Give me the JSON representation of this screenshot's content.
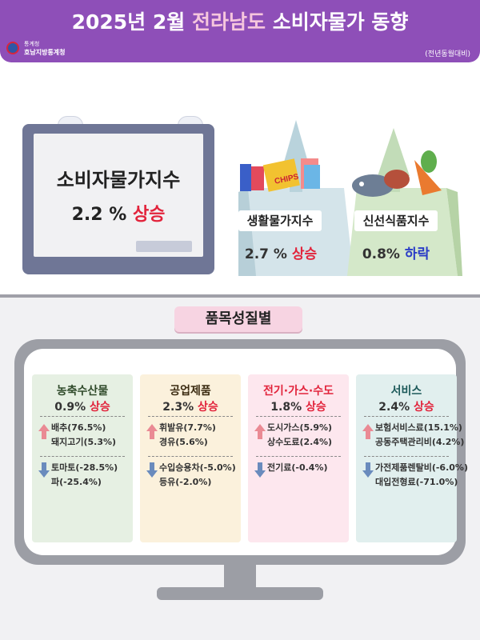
{
  "header": {
    "year_month": "2025년 2월",
    "region": "전라남도",
    "topic": "소비자물가 동향",
    "agency_small": "통계청",
    "agency": "호남지방통계청",
    "comparison_note": "(전년동월대비)"
  },
  "overview": {
    "cpi": {
      "label": "소비자물가지수",
      "value": "2.2 %",
      "direction": "상승"
    },
    "living": {
      "label": "생활물가지수",
      "value": "2.7 %",
      "direction": "상승"
    },
    "fresh": {
      "label": "신선식품지수",
      "value": "0.8%",
      "direction": "하락"
    },
    "chips_label": "CHIPS"
  },
  "section_title": "품목성질별",
  "categories": [
    {
      "name": "농축수산물",
      "value": "0.9%",
      "direction": "상승",
      "up_items": [
        "배추(76.5%)",
        "돼지고기(5.3%)"
      ],
      "down_items": [
        "토마토(-28.5%)",
        "파(-25.4%)"
      ]
    },
    {
      "name": "공업제품",
      "value": "2.3%",
      "direction": "상승",
      "up_items": [
        "휘발유(7.7%)",
        "경유(5.6%)"
      ],
      "down_items": [
        "수입승용차(-5.0%)",
        "등유(-2.0%)"
      ]
    },
    {
      "name": "전기·가스·수도",
      "value": "1.8%",
      "direction": "상승",
      "up_items": [
        "도시가스(5.9%)",
        "상수도료(2.4%)"
      ],
      "down_items": [
        "전기료(-0.4%)"
      ]
    },
    {
      "name": "서비스",
      "value": "2.4%",
      "direction": "상승",
      "up_items": [
        "보험서비스료(15.1%)",
        "공동주택관리비(4.2%)"
      ],
      "down_items": [
        "가전제품렌탈비(-6.0%)",
        "대입전형료(-71.0%)"
      ]
    }
  ],
  "colors": {
    "header": "#8e4fb8",
    "accent_pink": "#f6c6dd",
    "rise": "#e2233b",
    "fall": "#2a3cc7",
    "card_fills": [
      "#e6f0e3",
      "#fbf1dc",
      "#fde7ee",
      "#e1efee"
    ],
    "card_titles": [
      "#2f4a2a",
      "#3a2a10",
      "#e2233b",
      "#1d5a5a"
    ]
  }
}
